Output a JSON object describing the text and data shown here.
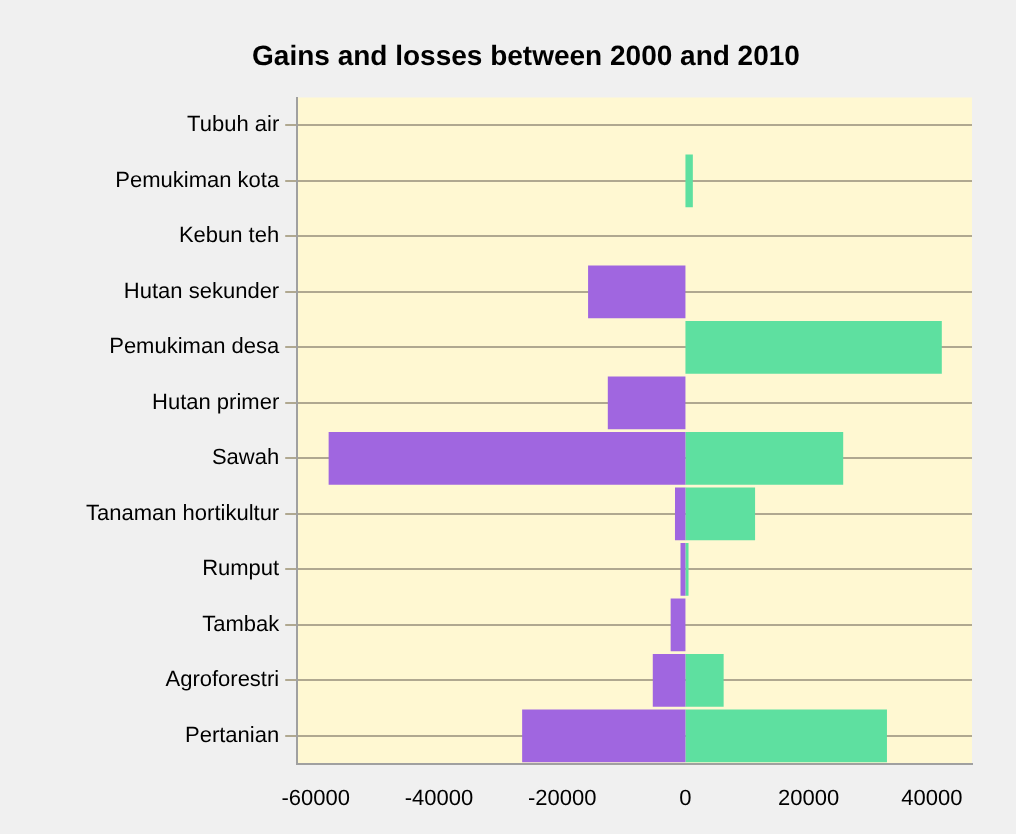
{
  "chart_data": {
    "type": "bar",
    "title": "Gains and losses between 2000 and 2010",
    "orientation": "horizontal",
    "stacked": true,
    "categories": [
      "Tubuh air",
      "Pemukiman kota",
      "Kebun teh",
      "Hutan sekunder",
      "Pemukiman desa",
      "Hutan primer",
      "Sawah",
      "Tanaman hortikultur",
      "Rumput",
      "Tambak",
      "Agroforestri",
      "Pertanian"
    ],
    "series": [
      {
        "color": "#a066e0",
        "values": [
          0,
          0,
          0,
          -15800,
          0,
          -12600,
          -57900,
          -1700,
          -800,
          -2400,
          -5300,
          -26500
        ]
      },
      {
        "color": "#5ee0a0",
        "values": [
          0,
          1200,
          0,
          0,
          41600,
          0,
          25600,
          11300,
          500,
          0,
          6200,
          32700
        ]
      }
    ],
    "xlim": [
      -63000,
      46500
    ],
    "xticks": [
      -60000,
      -40000,
      -20000,
      0,
      20000,
      40000
    ],
    "grid": "y",
    "legend": false
  }
}
